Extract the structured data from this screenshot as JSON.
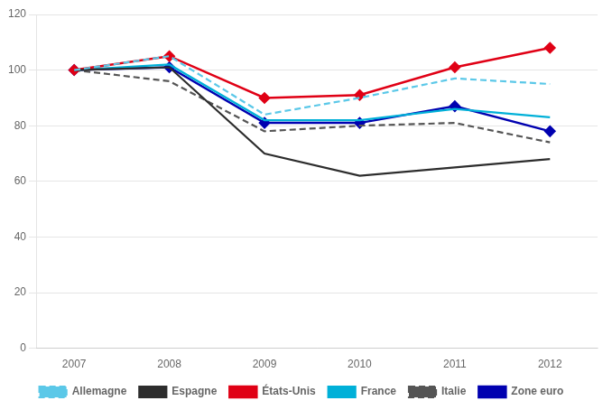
{
  "chart_data": {
    "type": "line",
    "x": [
      2007,
      2008,
      2009,
      2010,
      2011,
      2012
    ],
    "series": [
      {
        "name": "Allemagne",
        "color": "#5bc8e8",
        "values": [
          100,
          105,
          84,
          90,
          97,
          95
        ],
        "line_style": "dashed"
      },
      {
        "name": "Espagne",
        "color": "#2d2d2d",
        "values": [
          100,
          101,
          70,
          62,
          65,
          68
        ],
        "line_style": "solid"
      },
      {
        "name": "États-Unis",
        "color": "#e00015",
        "values": [
          100,
          105,
          90,
          91,
          101,
          108
        ],
        "line_style": "solid",
        "marker": "diamond"
      },
      {
        "name": "France",
        "color": "#00b0d8",
        "values": [
          100,
          102,
          82,
          82,
          86,
          83
        ],
        "line_style": "solid"
      },
      {
        "name": "Italie",
        "color": "#555555",
        "values": [
          100,
          96,
          78,
          80,
          81,
          74
        ],
        "line_style": "dashed"
      },
      {
        "name": "Zone euro",
        "color": "#0000b0",
        "values": [
          100,
          101,
          81,
          81,
          87,
          78
        ],
        "line_style": "solid",
        "marker": "diamond"
      }
    ],
    "xlim": [
      2006.6,
      2012.5
    ],
    "xticks": [
      2007,
      2008,
      2009,
      2010,
      2011,
      2012
    ],
    "ylim": [
      0,
      120
    ],
    "yticks": [
      0,
      20,
      40,
      60,
      80,
      100,
      120
    ],
    "grid": true,
    "legend": "bottom"
  }
}
